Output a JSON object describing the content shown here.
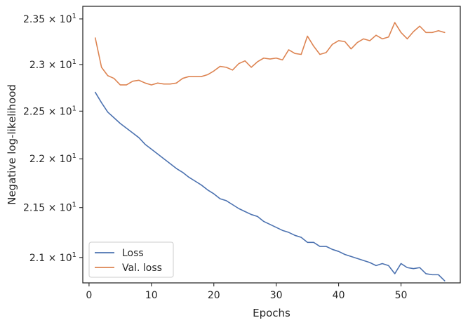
{
  "chart_data": {
    "type": "line",
    "title": "",
    "xlabel": "Epochs",
    "ylabel": "Negative log-likelihood",
    "yscale": "log",
    "xlim": [
      -1,
      59.5
    ],
    "ylim": [
      20.75,
      23.64
    ],
    "grid": false,
    "legend_position": "lower-left",
    "x_ticks": [
      {
        "value": 0,
        "label": "0"
      },
      {
        "value": 10,
        "label": "10"
      },
      {
        "value": 20,
        "label": "20"
      },
      {
        "value": 30,
        "label": "30"
      },
      {
        "value": 40,
        "label": "40"
      },
      {
        "value": 50,
        "label": "50"
      }
    ],
    "y_ticks": [
      {
        "value": 21.0,
        "mantissa": "2.1"
      },
      {
        "value": 21.5,
        "mantissa": "2.15"
      },
      {
        "value": 22.0,
        "mantissa": "2.2"
      },
      {
        "value": 22.5,
        "mantissa": "2.25"
      },
      {
        "value": 23.0,
        "mantissa": "2.3"
      },
      {
        "value": 23.5,
        "mantissa": "2.35"
      }
    ],
    "y_tick_base": "10",
    "y_tick_exponent": "1",
    "y_tick_times": "×",
    "x": [
      1,
      2,
      3,
      4,
      5,
      6,
      7,
      8,
      9,
      10,
      11,
      12,
      13,
      14,
      15,
      16,
      17,
      18,
      19,
      20,
      21,
      22,
      23,
      24,
      25,
      26,
      27,
      28,
      29,
      30,
      31,
      32,
      33,
      34,
      35,
      36,
      37,
      38,
      39,
      40,
      41,
      42,
      43,
      44,
      45,
      46,
      47,
      48,
      49,
      50,
      51,
      52,
      53,
      54,
      55,
      56,
      57
    ],
    "series": [
      {
        "name": "Loss",
        "color": "#4c72b0",
        "values": [
          22.7,
          22.59,
          22.49,
          22.43,
          22.37,
          22.32,
          22.27,
          22.22,
          22.15,
          22.1,
          22.05,
          22.0,
          21.95,
          21.9,
          21.86,
          21.81,
          21.77,
          21.73,
          21.68,
          21.64,
          21.59,
          21.57,
          21.53,
          21.49,
          21.46,
          21.43,
          21.41,
          21.36,
          21.33,
          21.3,
          21.27,
          21.25,
          21.22,
          21.2,
          21.15,
          21.15,
          21.11,
          21.11,
          21.08,
          21.06,
          21.03,
          21.01,
          20.99,
          20.97,
          20.95,
          20.92,
          20.94,
          20.92,
          20.84,
          20.94,
          20.9,
          20.89,
          20.9,
          20.84,
          20.83,
          20.83,
          20.77
        ]
      },
      {
        "name": "Val. loss",
        "color": "#dd8452",
        "values": [
          23.29,
          22.97,
          22.88,
          22.85,
          22.78,
          22.78,
          22.82,
          22.83,
          22.8,
          22.78,
          22.8,
          22.79,
          22.79,
          22.8,
          22.85,
          22.87,
          22.87,
          22.87,
          22.89,
          22.93,
          22.98,
          22.97,
          22.94,
          23.01,
          23.04,
          22.97,
          23.03,
          23.07,
          23.06,
          23.07,
          23.05,
          23.16,
          23.12,
          23.11,
          23.31,
          23.2,
          23.11,
          23.13,
          23.22,
          23.26,
          23.25,
          23.17,
          23.24,
          23.28,
          23.26,
          23.32,
          23.28,
          23.3,
          23.46,
          23.35,
          23.28,
          23.36,
          23.42,
          23.35,
          23.35,
          23.37,
          23.35
        ]
      }
    ]
  }
}
